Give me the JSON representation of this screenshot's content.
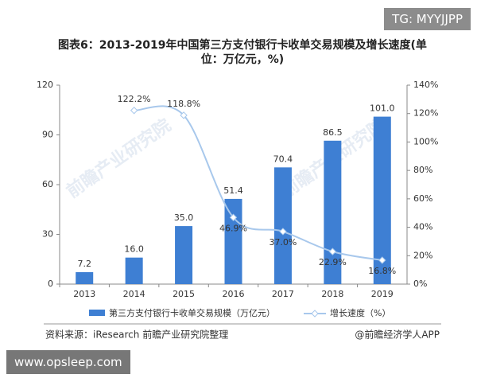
{
  "chart_data": {
    "type": "bar-line",
    "title": "图表6：2013-2019年中国第三方支付银行卡收单交易规模及增长速度(单位：万亿元，%)",
    "categories": [
      "2013",
      "2014",
      "2015",
      "2016",
      "2017",
      "2018",
      "2019"
    ],
    "series": [
      {
        "name": "第三方支付银行卡收单交易规模（万亿元）",
        "color": "#3e7fd3",
        "axis": "y",
        "values": [
          7.2,
          16.0,
          35.0,
          51.4,
          70.4,
          86.5,
          101.0
        ],
        "value_labels": [
          "7.2",
          "16.0",
          "35.0",
          "51.4",
          "70.4",
          "86.5",
          "101.0"
        ]
      },
      {
        "name": "增长速度（%）",
        "color": "#a8c8ec",
        "axis": "y2",
        "values": [
          null,
          122.2,
          118.8,
          46.9,
          37.0,
          22.9,
          16.8
        ],
        "value_labels": [
          null,
          "122.2%",
          "118.8%",
          "46.9%",
          "37.0%",
          "22.9%",
          "16.8%"
        ]
      }
    ],
    "ylim": [
      0,
      120
    ],
    "yticks": [
      0,
      30,
      60,
      90,
      120
    ],
    "y2lim": [
      0,
      140
    ],
    "y2ticks": [
      {
        "value": 0,
        "label": "0%"
      },
      {
        "value": 20,
        "label": "20%"
      },
      {
        "value": 40,
        "label": "40%"
      },
      {
        "value": 60,
        "label": "60%"
      },
      {
        "value": 80,
        "label": "80%"
      },
      {
        "value": 100,
        "label": "100%"
      },
      {
        "value": 120,
        "label": "120%"
      },
      {
        "value": 140,
        "label": "140%"
      }
    ],
    "source": "资料来源：iResearch 前瞻产业研究院整理",
    "credit": "@前瞻经济学人APP",
    "watermark": "前瞻产业研究院"
  },
  "overlay": {
    "top_tag": "TG: MYYJJPP",
    "bottom_tag": "www.opsleep.com"
  }
}
